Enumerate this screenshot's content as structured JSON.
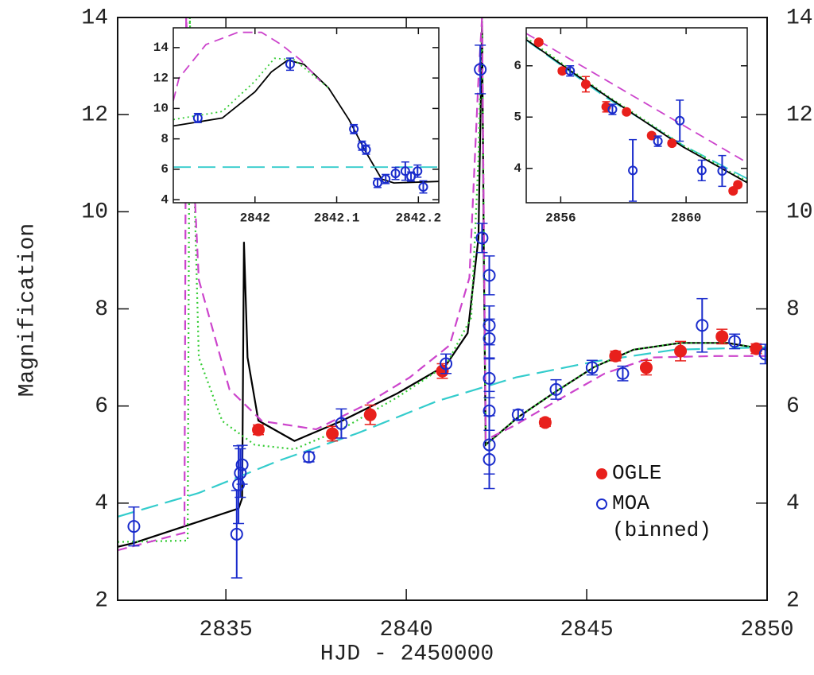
{
  "chart_data": [
    {
      "type": "scatter",
      "x_label": "HJD - 2450000",
      "y_label": "Magnification",
      "xlim": [
        2832,
        2850
      ],
      "ylim": [
        2,
        14
      ],
      "xticks": [
        2835,
        2840,
        2845,
        2850
      ],
      "yticks": [
        2,
        4,
        6,
        8,
        10,
        12,
        14
      ],
      "right_tick_labels": true,
      "series": [
        {
          "line": "solid",
          "color": "#000000",
          "x": [
            2832,
            2832.45,
            2835.35,
            2835.45,
            2835.5,
            2835.6,
            2835.9,
            2836.9,
            2838.2,
            2839.75,
            2841.1,
            2841.7,
            2842.0,
            2842.1,
            2842.15,
            2842.2,
            2843.1,
            2844.15,
            2845.2,
            2846.3,
            2847.6,
            2848.9,
            2850
          ],
          "values": [
            3.1,
            3.18,
            3.89,
            4.1,
            9.38,
            7.0,
            5.7,
            5.28,
            5.69,
            6.26,
            6.84,
            7.5,
            9.46,
            13.9,
            9.0,
            5.2,
            5.77,
            6.3,
            6.8,
            7.16,
            7.3,
            7.3,
            7.16
          ]
        },
        {
          "line": "dotted",
          "color": "#33cc33",
          "x": [
            2832,
            2833.94,
            2834.0,
            2834.25,
            2834.9,
            2835.8,
            2836.9,
            2838.2,
            2839.75,
            2841.1,
            2841.8,
            2842.0,
            2842.1,
            2842.2,
            2843.1,
            2844.15,
            2845.2,
            2846.3,
            2847.6,
            2848.9,
            2850
          ],
          "values": [
            3.2,
            3.23,
            14,
            7.0,
            5.69,
            5.2,
            5.11,
            5.52,
            6.18,
            6.84,
            7.82,
            11.1,
            14,
            5.2,
            5.77,
            6.3,
            6.8,
            7.16,
            7.3,
            7.3,
            7.16
          ]
        },
        {
          "line": "dashed",
          "color": "#cc44cc",
          "x": [
            2832,
            2833.85,
            2833.9,
            2834.25,
            2835.1,
            2836.0,
            2837.5,
            2838.8,
            2840.1,
            2841.2,
            2841.75,
            2842.0,
            2842.1,
            2842.2,
            2843.0,
            2844.15,
            2845.5,
            2846.8,
            2848.6,
            2850
          ],
          "values": [
            3.03,
            3.39,
            14,
            8.6,
            6.34,
            5.69,
            5.52,
            6.0,
            6.59,
            7.25,
            8.64,
            12.74,
            14,
            5.3,
            5.6,
            6.1,
            6.67,
            7.0,
            7.03,
            7.03
          ]
        },
        {
          "line": "long-dashed",
          "color": "#33cccc",
          "x": [
            2832,
            2834.25,
            2836.45,
            2838.65,
            2840.85,
            2843.05,
            2845.25,
            2847.45,
            2850
          ],
          "values": [
            3.72,
            4.21,
            4.87,
            5.44,
            6.1,
            6.59,
            6.92,
            7.16,
            7.21
          ]
        },
        {
          "name": "OGLE",
          "marker": "filled",
          "color": "#e8201c",
          "x": [
            2835.9,
            2837.95,
            2839.0,
            2841.0,
            2843.85,
            2845.8,
            2846.65,
            2847.6,
            2848.75,
            2849.7
          ],
          "values": [
            5.51,
            5.43,
            5.82,
            6.72,
            5.66,
            7.03,
            6.79,
            7.13,
            7.43,
            7.18
          ],
          "errors": [
            0.1,
            0.15,
            0.2,
            0.15,
            0.08,
            0.1,
            0.15,
            0.2,
            0.15,
            0.1
          ]
        },
        {
          "name": "MOA (binned)",
          "marker": "open",
          "color": "#1a2ccc",
          "x": [
            2832.45,
            2835.3,
            2835.35,
            2835.4,
            2835.45,
            2837.3,
            2838.2,
            2841.1,
            2842.05,
            2842.1,
            2842.3,
            2842.3,
            2842.3,
            2842.3,
            2842.3,
            2842.3,
            2842.3,
            2843.1,
            2844.15,
            2845.15,
            2846.0,
            2848.2,
            2849.1,
            2849.95
          ],
          "values": [
            3.52,
            3.36,
            4.38,
            4.62,
            4.79,
            4.95,
            5.64,
            6.87,
            12.93,
            9.46,
            8.69,
            7.66,
            7.39,
            6.57,
            5.9,
            5.2,
            4.9,
            5.82,
            6.34,
            6.79,
            6.67,
            7.66,
            7.33,
            7.07
          ],
          "errors": [
            0.4,
            0.9,
            0.8,
            0.5,
            0.4,
            0.1,
            0.3,
            0.2,
            0.5,
            0.3,
            0.4,
            0.4,
            0.4,
            0.4,
            0.4,
            0.6,
            0.6,
            0.1,
            0.2,
            0.15,
            0.15,
            0.55,
            0.15,
            0.2
          ]
        }
      ]
    },
    {
      "type": "scatter",
      "xlim": [
        2841.9,
        2842.225
      ],
      "ylim": [
        3.8,
        15.3
      ],
      "xticks": [
        2842,
        2842.1,
        2842.2
      ],
      "yticks": [
        4,
        6,
        8,
        10,
        12,
        14
      ],
      "series": [
        {
          "line": "solid",
          "color": "#000000",
          "x": [
            2841.9,
            2841.96,
            2842.0,
            2842.02,
            2842.04,
            2842.06,
            2842.09,
            2842.115,
            2842.135,
            2842.155,
            2842.17,
            2842.225
          ],
          "values": [
            8.85,
            9.37,
            11.09,
            12.4,
            13.18,
            12.9,
            11.35,
            9.27,
            7.2,
            5.36,
            5.1,
            5.2
          ]
        },
        {
          "line": "dotted",
          "color": "#33cc33",
          "x": [
            2841.9,
            2841.96,
            2842.0,
            2842.024,
            2842.048,
            2842.09
          ],
          "values": [
            9.27,
            9.8,
            11.8,
            13.3,
            13.2,
            11.35
          ]
        },
        {
          "line": "dashed",
          "color": "#cc44cc",
          "x": [
            2841.9,
            2841.907,
            2841.94,
            2841.979,
            2842.008,
            2842.032,
            2842.056,
            2842.08
          ],
          "values": [
            10.5,
            12.0,
            14.2,
            15.0,
            15.0,
            14.2,
            13.18,
            11.8
          ]
        },
        {
          "line": "long-dashed",
          "color": "#33cccc",
          "x": [
            2841.9,
            2842.225
          ],
          "values": [
            6.14,
            6.14
          ]
        },
        {
          "marker": "open",
          "color": "#1a2ccc",
          "x": [
            2841.93,
            2842.043,
            2842.121,
            2842.131,
            2842.136,
            2842.15,
            2842.16,
            2842.172,
            2842.184,
            2842.191,
            2842.199,
            2842.206
          ],
          "values": [
            9.37,
            12.91,
            8.64,
            7.55,
            7.29,
            5.1,
            5.36,
            5.73,
            5.88,
            5.52,
            5.88,
            4.84
          ],
          "errors": [
            0.3,
            0.4,
            0.3,
            0.3,
            0.3,
            0.3,
            0.3,
            0.4,
            0.6,
            0.3,
            0.4,
            0.4
          ]
        }
      ]
    },
    {
      "type": "scatter",
      "xlim": [
        2854.9,
        2861.95
      ],
      "ylim": [
        3.33,
        6.74
      ],
      "xticks": [
        2856,
        2860
      ],
      "yticks": [
        4,
        5,
        6
      ],
      "series": [
        {
          "line": "dashed",
          "color": "#cc44cc",
          "x": [
            2854.9,
            2861.95
          ],
          "values": [
            6.63,
            4.11
          ]
        },
        {
          "line": "long-dashed",
          "color": "#33cccc",
          "x": [
            2854.9,
            2857.4,
            2859.9,
            2861.95
          ],
          "values": [
            6.5,
            5.4,
            4.45,
            3.8
          ]
        },
        {
          "line": "dotted",
          "color": "#33cc33",
          "x": [
            2854.9,
            2857.4,
            2859.9,
            2861.95
          ],
          "values": [
            6.55,
            5.45,
            4.45,
            3.75
          ]
        },
        {
          "line": "solid",
          "color": "#000000",
          "x": [
            2854.9,
            2857.4,
            2859.9,
            2861.95
          ],
          "values": [
            6.51,
            5.43,
            4.42,
            3.72
          ]
        },
        {
          "marker": "filled",
          "color": "#e8201c",
          "x": [
            2855.3,
            2856.05,
            2856.8,
            2857.45,
            2858.1,
            2858.9,
            2859.55,
            2861.5,
            2861.65
          ],
          "values": [
            6.46,
            5.9,
            5.64,
            5.2,
            5.1,
            4.64,
            4.49,
            3.56,
            3.68
          ],
          "errors": [
            0.05,
            0.05,
            0.15,
            0.1,
            0.05,
            0.05,
            0.05,
            0.05,
            0.05
          ]
        },
        {
          "marker": "open",
          "color": "#1a2ccc",
          "x": [
            2856.3,
            2857.65,
            2858.3,
            2859.1,
            2859.8,
            2860.5,
            2861.15
          ],
          "values": [
            5.9,
            5.15,
            3.96,
            4.53,
            4.93,
            3.96,
            3.95
          ],
          "errors": [
            0.1,
            0.1,
            0.6,
            0.1,
            0.4,
            0.2,
            0.3
          ]
        }
      ]
    }
  ]
}
